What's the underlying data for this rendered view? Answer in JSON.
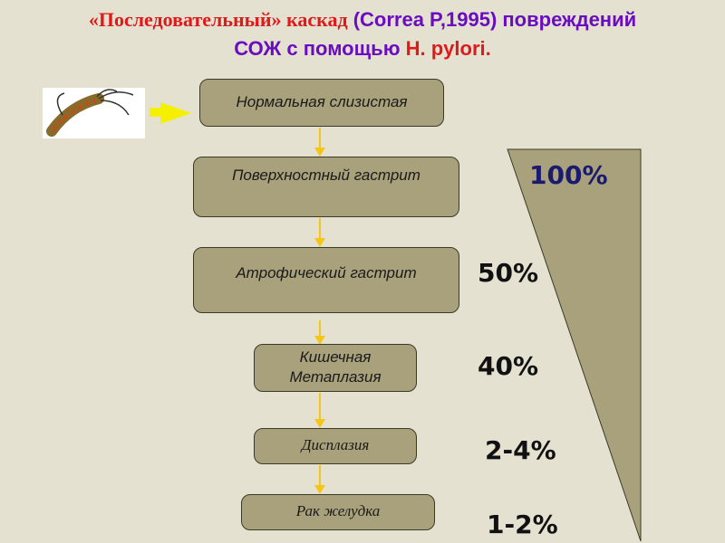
{
  "title": {
    "part1": "«Последовательный» каскад",
    "part2": " (Correa P,1995) повреждений",
    "part3": "СОЖ с помощью ",
    "part4": "H. pylori."
  },
  "image": {
    "icon": "h-pylori-bacterium-icon"
  },
  "stages": [
    {
      "label": "Нормальная слизистая"
    },
    {
      "label": "Поверхностный гастрит"
    },
    {
      "label": "Атрофический гастрит"
    },
    {
      "label": "Кишечная Метаплазия"
    },
    {
      "label": "Дисплазия"
    },
    {
      "label": "Рак желудка"
    }
  ],
  "percentages": [
    "100%",
    "50%",
    "40%",
    "2-4%",
    "1-2%"
  ],
  "colors": {
    "box": "#a8a17b",
    "arrow": "#f5c518",
    "title_purple": "#6a0dc0",
    "title_red": "#e0191b",
    "pct_100": "#1a1a6e"
  }
}
